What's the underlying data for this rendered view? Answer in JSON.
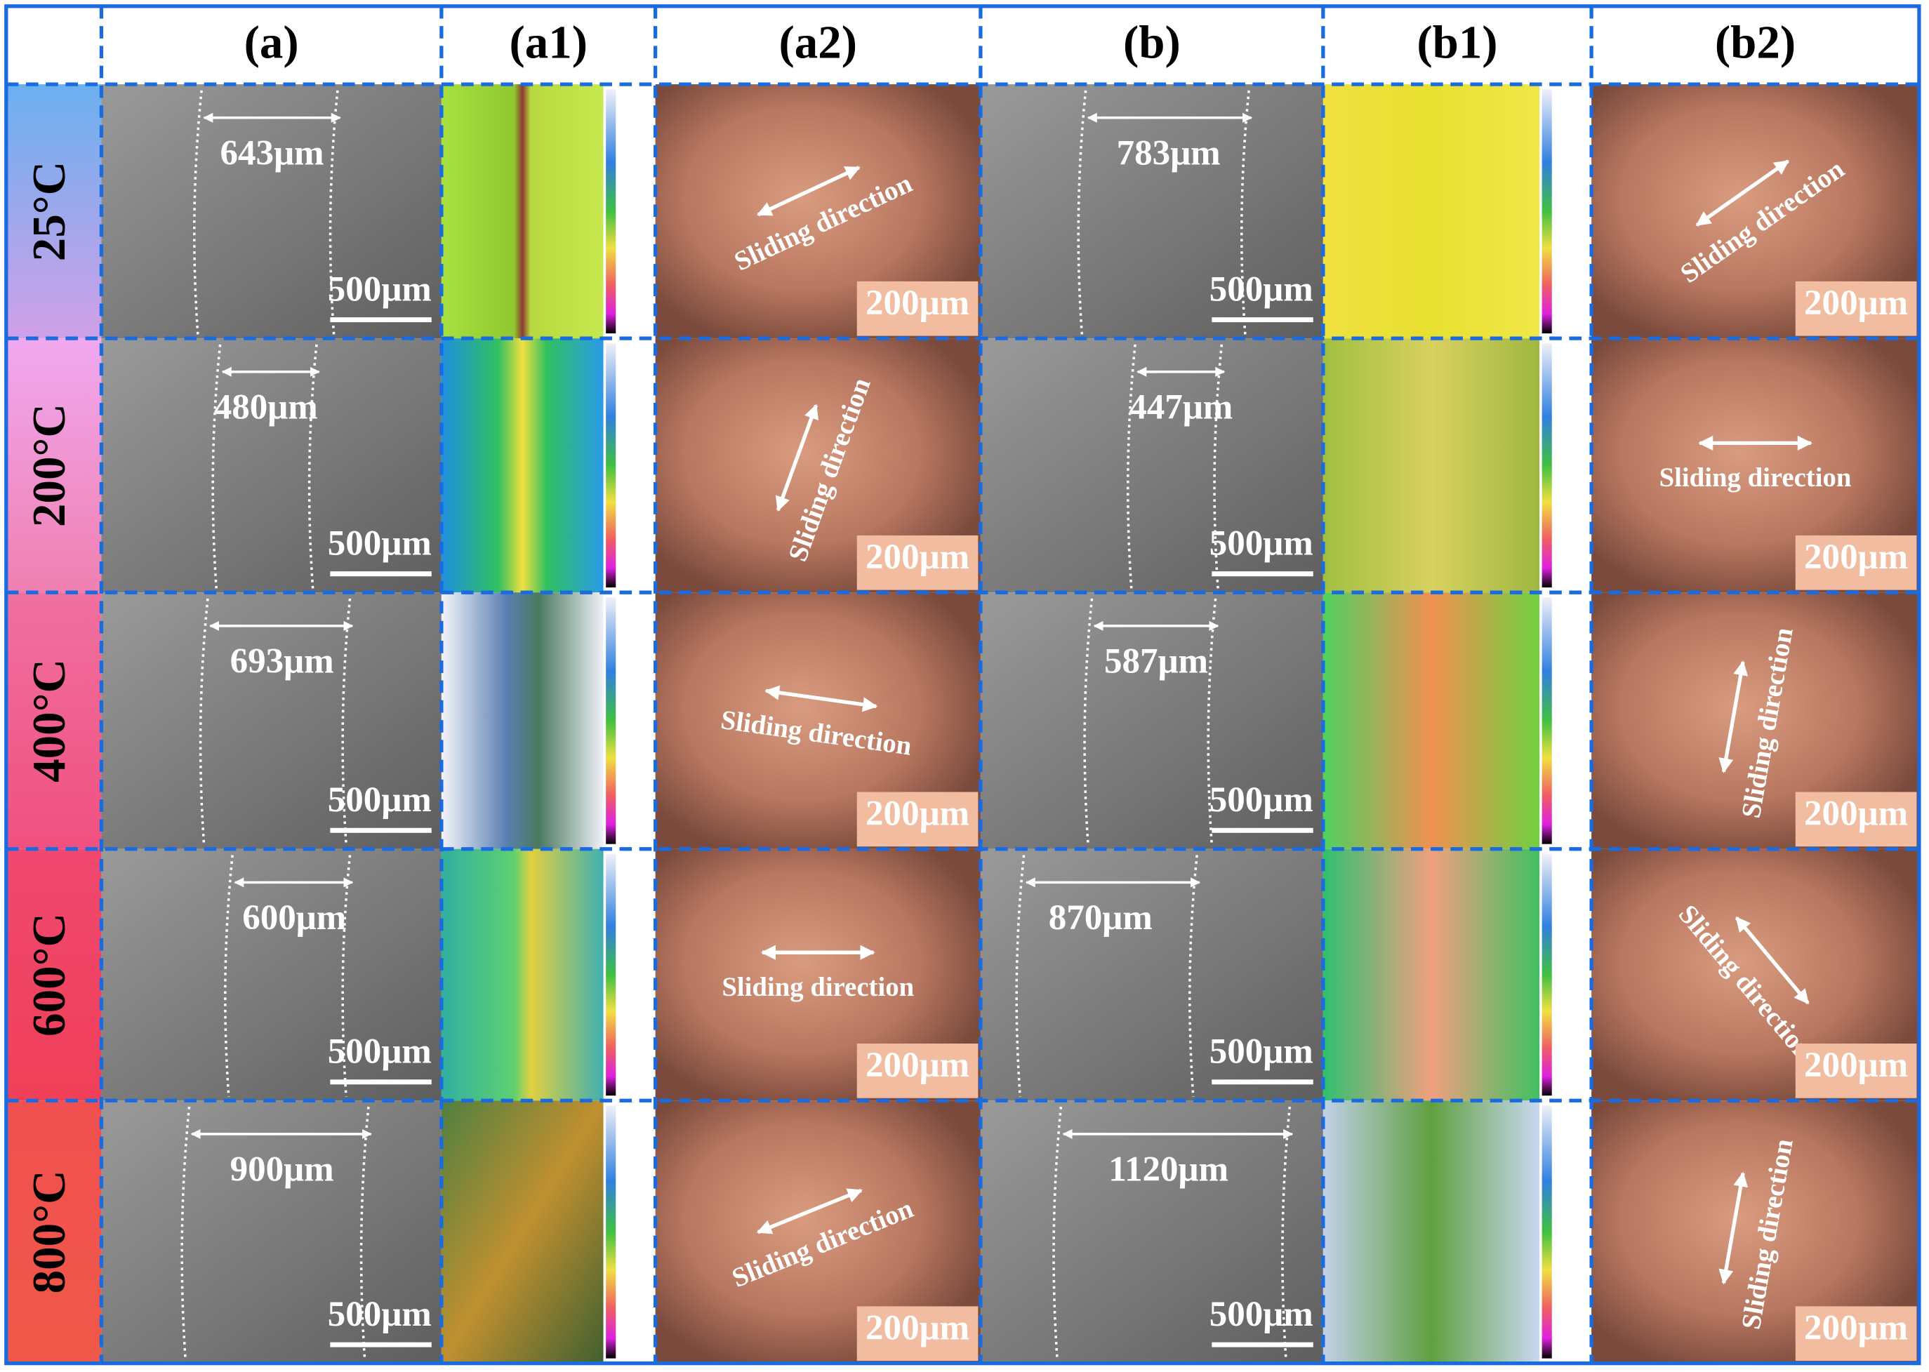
{
  "columns": [
    "(a)",
    "(a1)",
    "(a2)",
    "(b)",
    "(b1)",
    "(b2)"
  ],
  "rows": [
    {
      "temperature": "25°C",
      "a_width": "643μm",
      "a_scale": "500μm",
      "a2_label": "Sliding direction",
      "a2_scale": "200μm",
      "b_width": "783μm",
      "b_scale": "500μm",
      "b2_label": "Sliding direction",
      "b2_scale": "200μm"
    },
    {
      "temperature": "200°C",
      "a_width": "480μm",
      "a_scale": "500μm",
      "a2_label": "Sliding direction",
      "a2_scale": "200μm",
      "b_width": "447μm",
      "b_scale": "500μm",
      "b2_label": "Sliding direction",
      "b2_scale": "200μm"
    },
    {
      "temperature": "400°C",
      "a_width": "693μm",
      "a_scale": "500μm",
      "a2_label": "Sliding direction",
      "a2_scale": "200μm",
      "b_width": "587μm",
      "b_scale": "500μm",
      "b2_label": "Sliding direction",
      "b2_scale": "200μm"
    },
    {
      "temperature": "600°C",
      "a_width": "600μm",
      "a_scale": "500μm",
      "a2_label": "Sliding direction",
      "a2_scale": "200μm",
      "b_width": "870μm",
      "b_scale": "500μm",
      "b2_label": "Sliding direction",
      "b2_scale": "200μm"
    },
    {
      "temperature": "800°C",
      "a_width": "900μm",
      "a_scale": "500μm",
      "a2_label": "Sliding direction",
      "a2_scale": "200μm",
      "b_width": "1120μm",
      "b_scale": "500μm",
      "b2_label": "Sliding direction",
      "b2_scale": "200μm"
    }
  ]
}
